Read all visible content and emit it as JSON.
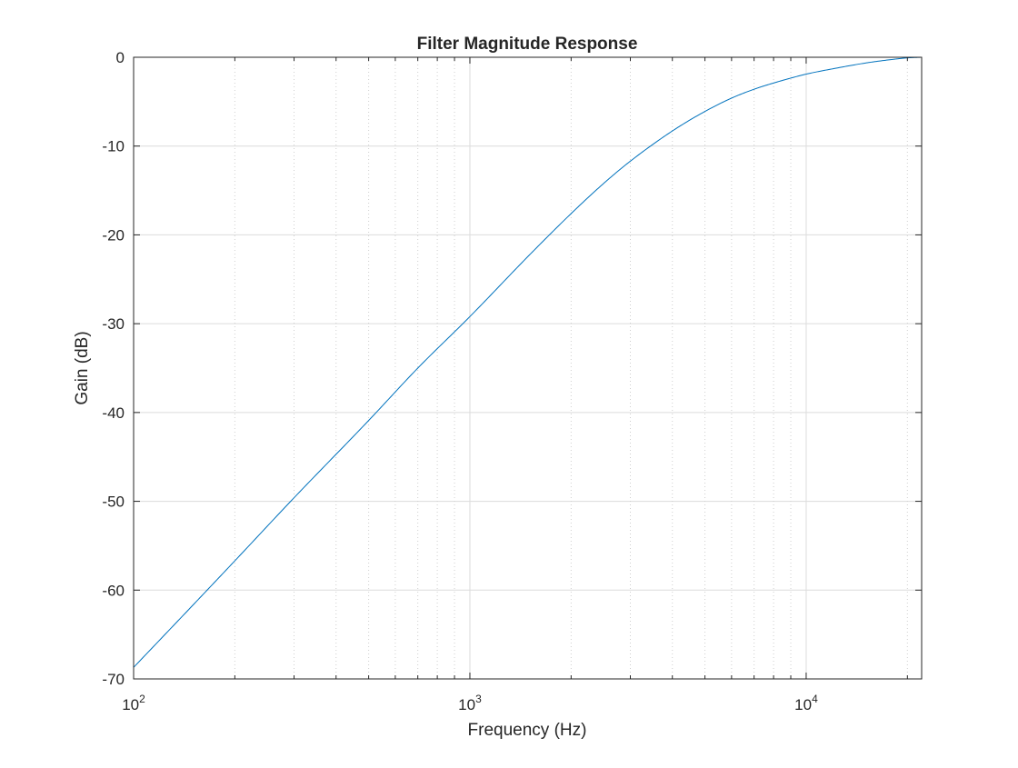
{
  "chart_data": {
    "type": "line",
    "title": "Filter Magnitude Response",
    "xlabel": "Frequency (Hz)",
    "ylabel": "Gain (dB)",
    "xscale": "log",
    "xlim": [
      100,
      22050
    ],
    "ylim": [
      -70,
      0
    ],
    "grid": true,
    "x_major_ticks": [
      {
        "value": 100,
        "base": "10",
        "exp": "2"
      },
      {
        "value": 1000,
        "base": "10",
        "exp": "3"
      },
      {
        "value": 10000,
        "base": "10",
        "exp": "4"
      }
    ],
    "y_ticks": [
      {
        "value": 0,
        "label": "0"
      },
      {
        "value": -10,
        "label": "-10"
      },
      {
        "value": -20,
        "label": "-20"
      },
      {
        "value": -30,
        "label": "-30"
      },
      {
        "value": -40,
        "label": "-40"
      },
      {
        "value": -50,
        "label": "-50"
      },
      {
        "value": -60,
        "label": "-60"
      },
      {
        "value": -70,
        "label": "-70"
      }
    ],
    "series": [
      {
        "color": "#0072BD",
        "x": [
          100,
          150,
          200,
          300,
          500,
          700,
          1000,
          1500,
          2000,
          2500,
          3000,
          4000,
          5000,
          6000,
          7000,
          8000,
          10000,
          12000,
          15000,
          18000,
          20000,
          22050
        ],
        "y": [
          -68.7,
          -61.7,
          -56.7,
          -49.6,
          -40.9,
          -35.0,
          -29.2,
          -22.3,
          -17.6,
          -14.2,
          -11.7,
          -8.3,
          -6.1,
          -4.6,
          -3.6,
          -2.9,
          -1.9,
          -1.3,
          -0.65,
          -0.25,
          -0.07,
          0
        ]
      }
    ]
  }
}
